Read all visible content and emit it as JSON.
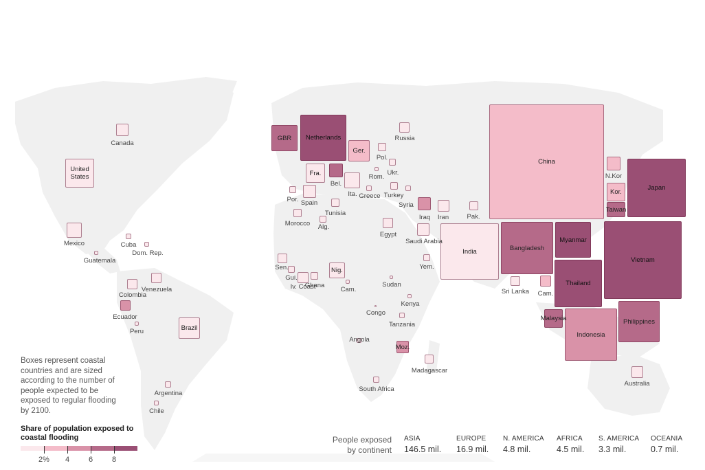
{
  "colors": {
    "land": "#f0f0f0",
    "scale": [
      "#fbe8ec",
      "#f4bcc9",
      "#d992a8",
      "#b56a89",
      "#9a4f74"
    ]
  },
  "note": "Boxes represent coastal countries and are sized according to the number of people expected to be exposed to regular flooding by 2100.",
  "scale": {
    "title": "Share of population exposed to coastal flooding",
    "ticks": [
      "2%",
      "4",
      "6",
      "8"
    ]
  },
  "continents": {
    "title": "People exposed by continent",
    "items": [
      {
        "name": "ASIA",
        "value": "146.5 mil."
      },
      {
        "name": "EUROPE",
        "value": "16.9 mil."
      },
      {
        "name": "N. AMERICA",
        "value": "4.8 mil."
      },
      {
        "name": "AFRICA",
        "value": "4.5 mil."
      },
      {
        "name": "S. AMERICA",
        "value": "3.3 mil."
      },
      {
        "name": "OCEANIA",
        "value": "0.7 mil."
      }
    ]
  },
  "countries": [
    {
      "label": "China",
      "share_bin": 1
    },
    {
      "label": "Vietnam",
      "share_bin": 4
    },
    {
      "label": "Japan",
      "share_bin": 4
    },
    {
      "label": "India",
      "share_bin": 0
    },
    {
      "label": "Bangladesh",
      "share_bin": 3
    },
    {
      "label": "Thailand",
      "share_bin": 4
    },
    {
      "label": "Myanmar",
      "share_bin": 4
    },
    {
      "label": "Indonesia",
      "share_bin": 2
    },
    {
      "label": "Philippines",
      "share_bin": 3
    },
    {
      "label": "Malaysia",
      "share_bin": 3
    },
    {
      "label": "Cam.",
      "share_bin": 1
    },
    {
      "label": "Sri Lanka",
      "share_bin": 0
    },
    {
      "label": "N.Kor",
      "share_bin": 1
    },
    {
      "label": "Kor.",
      "share_bin": 1
    },
    {
      "label": "Taiwan",
      "share_bin": 3
    },
    {
      "label": "Pak.",
      "share_bin": 0
    },
    {
      "label": "Iran",
      "share_bin": 0
    },
    {
      "label": "Iraq",
      "share_bin": 2
    },
    {
      "label": "Saudi Arabia",
      "share_bin": 0
    },
    {
      "label": "Yem.",
      "share_bin": 0
    },
    {
      "label": "Syria",
      "share_bin": 0
    },
    {
      "label": "Turkey",
      "share_bin": 0
    },
    {
      "label": "Russia",
      "share_bin": 0
    },
    {
      "label": "Australia",
      "share_bin": 0
    },
    {
      "label": "Netherlands",
      "share_bin": 4
    },
    {
      "label": "GBR",
      "share_bin": 3
    },
    {
      "label": "Ger.",
      "share_bin": 1
    },
    {
      "label": "Fra.",
      "share_bin": 0
    },
    {
      "label": "Bel.",
      "share_bin": 3
    },
    {
      "label": "Ita.",
      "share_bin": 0
    },
    {
      "label": "Pol.",
      "share_bin": 0
    },
    {
      "label": "Ukr.",
      "share_bin": 0
    },
    {
      "label": "Rom.",
      "share_bin": 0
    },
    {
      "label": "Greece",
      "share_bin": 0
    },
    {
      "label": "Spain",
      "share_bin": 0
    },
    {
      "label": "Por.",
      "share_bin": 0
    },
    {
      "label": "Tunisia",
      "share_bin": 0
    },
    {
      "label": "Alg.",
      "share_bin": 0
    },
    {
      "label": "Morocco",
      "share_bin": 0
    },
    {
      "label": "Egypt",
      "share_bin": 0
    },
    {
      "label": "Sudan",
      "share_bin": 0
    },
    {
      "label": "Kenya",
      "share_bin": 0
    },
    {
      "label": "Tanzania",
      "share_bin": 0
    },
    {
      "label": "Congo",
      "share_bin": 0
    },
    {
      "label": "Angola",
      "share_bin": 0
    },
    {
      "label": "Moz.",
      "share_bin": 2
    },
    {
      "label": "Madagascar",
      "share_bin": 0
    },
    {
      "label": "South Africa",
      "share_bin": 0
    },
    {
      "label": "Nig.",
      "share_bin": 0
    },
    {
      "label": "Cam.",
      "share_bin": 0
    },
    {
      "label": "Ghana",
      "share_bin": 0
    },
    {
      "label": "Iv. Coast",
      "share_bin": 0
    },
    {
      "label": "Gui.",
      "share_bin": 0
    },
    {
      "label": "Sen.",
      "share_bin": 0
    },
    {
      "label": "Canada",
      "share_bin": 0
    },
    {
      "label": "United States",
      "share_bin": 0
    },
    {
      "label": "Mexico",
      "share_bin": 0
    },
    {
      "label": "Cuba",
      "share_bin": 0
    },
    {
      "label": "Dom. Rep.",
      "share_bin": 0
    },
    {
      "label": "Guatemala",
      "share_bin": 0
    },
    {
      "label": "Venezuela",
      "share_bin": 0
    },
    {
      "label": "Colombia",
      "share_bin": 0
    },
    {
      "label": "Ecuador",
      "share_bin": 2
    },
    {
      "label": "Peru",
      "share_bin": 0
    },
    {
      "label": "Brazil",
      "share_bin": 0
    },
    {
      "label": "Argentina",
      "share_bin": 0
    },
    {
      "label": "Chile",
      "share_bin": 0
    }
  ]
}
